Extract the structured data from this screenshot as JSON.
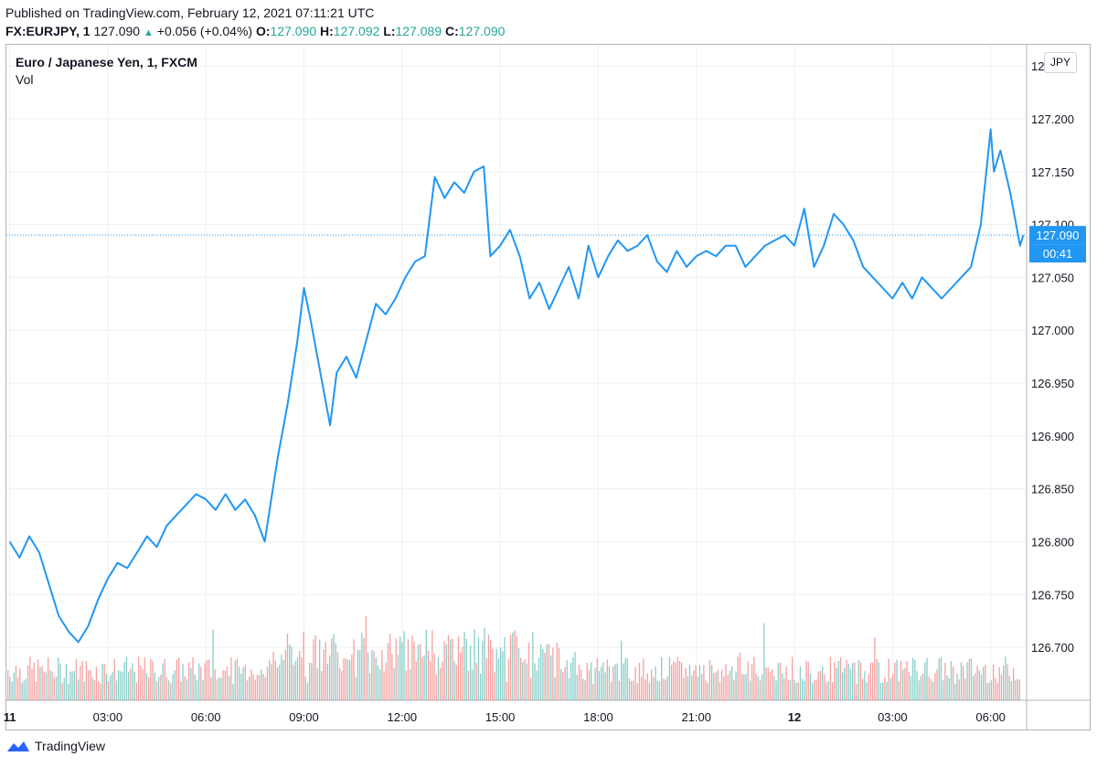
{
  "header": {
    "published": "Published on TradingView.com, February 12, 2021 07:11:21 UTC",
    "symbol": "FX:EURJPY, 1",
    "last": "127.090",
    "change": "+0.056 (+0.04%)",
    "o_label": "O:",
    "o_value": "127.090",
    "h_label": "H:",
    "h_value": "127.092",
    "l_label": "L:",
    "l_value": "127.089",
    "c_label": "C:",
    "c_value": "127.090"
  },
  "chart_title": "Euro / Japanese Yen, 1, FXCM",
  "volume_label": "Vol",
  "currency_button": "JPY",
  "price_badge": "127.090",
  "countdown_badge": "00:41",
  "footer_logo": "TradingView",
  "colors": {
    "line": "#2196f3",
    "vol_up": "#26a69a",
    "vol_down": "#ef5350",
    "grid": "#eef0f3",
    "badge": "#2196f3"
  },
  "chart_data": {
    "type": "line",
    "title": "Euro / Japanese Yen, 1, FXCM",
    "ylim": [
      126.65,
      127.27
    ],
    "y_ticks": [
      "127.250",
      "127.200",
      "127.150",
      "127.100",
      "127.050",
      "127.000",
      "126.950",
      "126.900",
      "126.850",
      "126.800",
      "126.750",
      "126.700"
    ],
    "x_ticks": [
      "11",
      "03:00",
      "06:00",
      "09:00",
      "12:00",
      "15:00",
      "18:00",
      "21:00",
      "12",
      "03:00",
      "06:00"
    ],
    "x_hours": [
      0,
      3,
      6,
      9,
      12,
      15,
      18,
      21,
      24,
      27,
      30
    ],
    "x_range_hours": [
      -0.1,
      31.1
    ],
    "current_price": 127.09,
    "series": [
      {
        "x": [
          0,
          0.3,
          0.6,
          0.9,
          1.2,
          1.5,
          1.8,
          2.1,
          2.4,
          2.7,
          3.0,
          3.3,
          3.6,
          3.9,
          4.2,
          4.5,
          4.8,
          5.1,
          5.4,
          5.7,
          6.0,
          6.3,
          6.6,
          6.9,
          7.2,
          7.5,
          7.8,
          8.0,
          8.2,
          8.5,
          8.8,
          9.0,
          9.2,
          9.5,
          9.8,
          10.0,
          10.3,
          10.6,
          10.9,
          11.2,
          11.5,
          11.8,
          12.1,
          12.4,
          12.7,
          12.9,
          13.0,
          13.3,
          13.6,
          13.9,
          14.2,
          14.5,
          14.7,
          15.0,
          15.3,
          15.6,
          15.9,
          16.2,
          16.5,
          16.8,
          17.1,
          17.4,
          17.7,
          18.0,
          18.3,
          18.6,
          18.9,
          19.2,
          19.5,
          19.8,
          20.1,
          20.4,
          20.7,
          21.0,
          21.3,
          21.6,
          21.9,
          22.2,
          22.5,
          22.8,
          23.1,
          23.4,
          23.7,
          24.0,
          24.3,
          24.6,
          24.9,
          25.2,
          25.5,
          25.8,
          26.1,
          26.4,
          26.7,
          27.0,
          27.3,
          27.6,
          27.9,
          28.2,
          28.5,
          28.8,
          29.1,
          29.4,
          29.7,
          30.0,
          30.1,
          30.3,
          30.6,
          30.9,
          31.0
        ],
        "y": [
          126.8,
          126.785,
          126.805,
          126.79,
          126.76,
          126.73,
          126.715,
          126.705,
          126.72,
          126.745,
          126.765,
          126.78,
          126.775,
          126.79,
          126.805,
          126.795,
          126.815,
          126.825,
          126.835,
          126.845,
          126.84,
          126.83,
          126.845,
          126.83,
          126.84,
          126.825,
          126.8,
          126.84,
          126.88,
          126.93,
          126.99,
          127.04,
          127.01,
          126.96,
          126.91,
          126.96,
          126.975,
          126.955,
          126.99,
          127.025,
          127.015,
          127.03,
          127.05,
          127.065,
          127.07,
          127.12,
          127.145,
          127.125,
          127.14,
          127.13,
          127.15,
          127.155,
          127.07,
          127.08,
          127.095,
          127.07,
          127.03,
          127.045,
          127.02,
          127.04,
          127.06,
          127.03,
          127.08,
          127.05,
          127.07,
          127.085,
          127.075,
          127.08,
          127.09,
          127.065,
          127.055,
          127.075,
          127.06,
          127.07,
          127.075,
          127.07,
          127.08,
          127.08,
          127.06,
          127.07,
          127.08,
          127.085,
          127.09,
          127.08,
          127.115,
          127.06,
          127.08,
          127.11,
          127.1,
          127.085,
          127.06,
          127.05,
          127.04,
          127.03,
          127.045,
          127.03,
          127.05,
          127.04,
          127.03,
          127.04,
          127.05,
          127.06,
          127.1,
          127.19,
          127.15,
          127.17,
          127.13,
          127.08,
          127.09
        ]
      }
    ]
  }
}
